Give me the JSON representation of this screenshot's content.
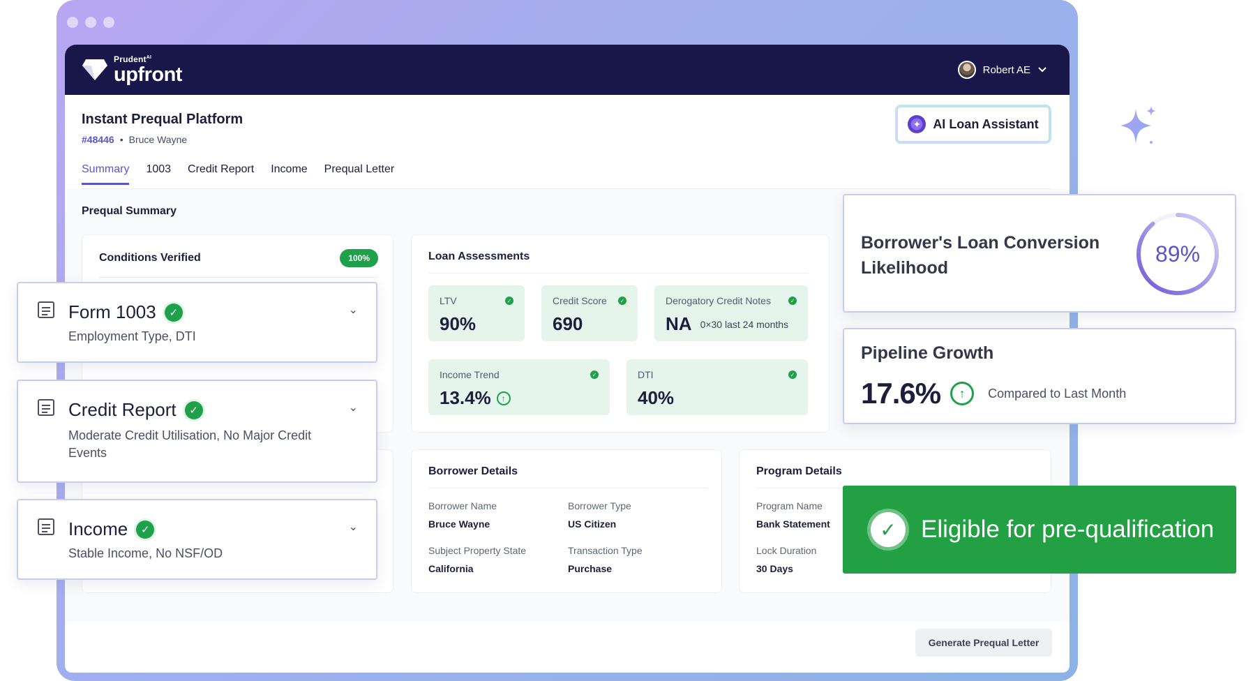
{
  "brand": {
    "small": "Prudent",
    "sup": "AI",
    "name": "upfront"
  },
  "user": {
    "name": "Robert AE"
  },
  "header": {
    "title": "Instant Prequal Platform",
    "loan_id": "#48446",
    "borrower": "Bruce Wayne",
    "separator": "•"
  },
  "ai_button": {
    "label": "AI Loan Assistant"
  },
  "tabs": [
    {
      "label": "Summary",
      "active": true
    },
    {
      "label": "1003"
    },
    {
      "label": "Credit Report"
    },
    {
      "label": "Income"
    },
    {
      "label": "Prequal Letter"
    }
  ],
  "prequal": {
    "title": "Prequal Summary"
  },
  "conditions": {
    "title": "Conditions Verified",
    "pill": "100%"
  },
  "loan_assessments": {
    "title": "Loan Assessments",
    "ltv": {
      "label": "LTV",
      "value": "90%"
    },
    "credit_score": {
      "label": "Credit Score",
      "value": "690"
    },
    "derogatory": {
      "label": "Derogatory Credit Notes",
      "value": "NA",
      "note": "0×30 last 24 months"
    },
    "income_trend": {
      "label": "Income Trend",
      "value": "13.4%"
    },
    "dti": {
      "label": "DTI",
      "value": "40%"
    }
  },
  "borrower_details": {
    "title": "Borrower Details",
    "name": {
      "label": "Borrower Name",
      "value": "Bruce Wayne"
    },
    "type": {
      "label": "Borrower Type",
      "value": "US Citizen"
    },
    "state": {
      "label": "Subject Property State",
      "value": "California"
    },
    "transaction": {
      "label": "Transaction Type",
      "value": "Purchase"
    }
  },
  "program_details": {
    "title": "Program Details",
    "program": {
      "label": "Program Name",
      "value": "Bank Statement"
    },
    "lock": {
      "label": "Lock Duration",
      "value": "30 Days"
    }
  },
  "generate_button": {
    "label": "Generate Prequal Letter"
  },
  "accordions": [
    {
      "title": "Form 1003",
      "desc": "Employment Type, DTI"
    },
    {
      "title": "Credit Report",
      "desc": "Moderate Credit Utilisation, No Major Credit Events"
    },
    {
      "title": "Income",
      "desc": "Stable Income, No NSF/OD"
    }
  ],
  "likelihood": {
    "title": "Borrower's Loan Conversion Likelihood",
    "value": "89%",
    "fraction": 0.89
  },
  "pipeline": {
    "title": "Pipeline Growth",
    "value": "17.6%",
    "note": "Compared to Last Month"
  },
  "eligible": {
    "label": "Eligible for pre-qualification"
  },
  "colors": {
    "brand_bar": "#19174a",
    "accent": "#5a55c9",
    "success": "#23a043"
  },
  "icons": [
    "diamond-logo-icon",
    "chevron-down-icon",
    "sparkle-icon",
    "check-badge-icon",
    "arrow-up-circle-icon",
    "document-list-icon"
  ]
}
